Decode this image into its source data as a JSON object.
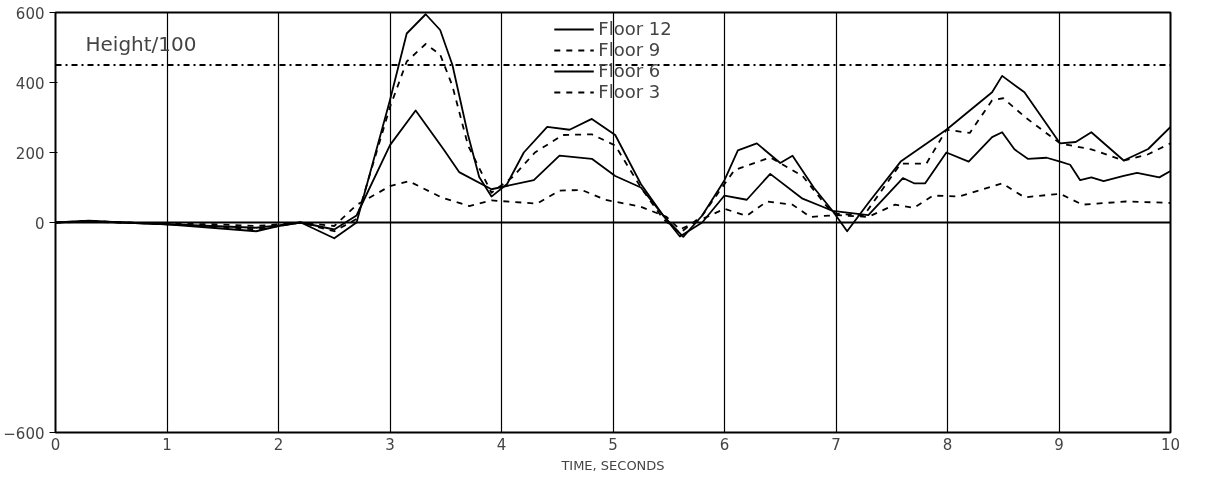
{
  "chart_data": {
    "type": "line",
    "xlabel": "TIME, SECONDS",
    "xlim": [
      0,
      10
    ],
    "xticks": [
      0,
      1,
      2,
      3,
      4,
      5,
      6,
      7,
      8,
      9,
      10
    ],
    "ylim": [
      -600,
      600
    ],
    "yticks": [
      -600,
      0,
      200,
      400,
      600
    ],
    "grid": "x",
    "marker": "none",
    "legend": "top",
    "ref_lines": [
      {
        "axis": "y",
        "value": 450,
        "label": "Height/100",
        "color": "#000000",
        "line_style": "dashdot"
      },
      {
        "axis": "y",
        "value": 0,
        "color": "#000000",
        "line_style": "solid"
      }
    ],
    "series": [
      {
        "name": "Floor 12",
        "color": "#000000",
        "line_style": "solid",
        "x": [
          0,
          0.3,
          0.6,
          1.0,
          1.4,
          1.8,
          2.0,
          2.2,
          2.5,
          2.7,
          3.0,
          3.15,
          3.32,
          3.45,
          3.56,
          3.7,
          3.8,
          3.91,
          4.05,
          4.2,
          4.41,
          4.61,
          4.81,
          5.02,
          5.25,
          5.45,
          5.63,
          5.8,
          6.0,
          6.12,
          6.29,
          6.5,
          6.61,
          6.8,
          6.97,
          7.1,
          7.3,
          7.58,
          7.99,
          8.2,
          8.4,
          8.49,
          8.69,
          9.01,
          9.15,
          9.29,
          9.58,
          9.8,
          10.0
        ],
        "values": [
          0,
          5,
          0,
          -5,
          -15,
          -25,
          -10,
          0,
          -45,
          0,
          350,
          540,
          595,
          550,
          450,
          250,
          130,
          74,
          110,
          200,
          273,
          265,
          296,
          250,
          110,
          20,
          -41,
          20,
          121,
          206,
          226,
          170,
          191,
          100,
          33,
          -25,
          60,
          174,
          265,
          320,
          372,
          419,
          372,
          226,
          230,
          258,
          177,
          210,
          273
        ]
      },
      {
        "name": "Floor 9",
        "color": "#000000",
        "line_style": "dashed",
        "x": [
          0,
          0.3,
          0.6,
          1.0,
          1.4,
          1.8,
          2.0,
          2.2,
          2.5,
          2.7,
          3.0,
          3.15,
          3.32,
          3.45,
          3.56,
          3.7,
          3.91,
          4.1,
          4.3,
          4.55,
          4.81,
          5.02,
          5.25,
          5.45,
          5.6,
          5.8,
          6.0,
          6.09,
          6.41,
          6.7,
          6.92,
          7.0,
          7.25,
          7.58,
          7.81,
          7.99,
          8.2,
          8.4,
          8.5,
          8.7,
          9.01,
          9.29,
          9.58,
          9.8,
          10.0
        ],
        "values": [
          0,
          5,
          0,
          -5,
          -10,
          -20,
          -10,
          0,
          -25,
          10,
          330,
          460,
          510,
          480,
          390,
          220,
          85,
          130,
          200,
          250,
          252,
          220,
          100,
          10,
          -30,
          20,
          110,
          150,
          186,
          133,
          45,
          25,
          20,
          168,
          168,
          265,
          256,
          349,
          355,
          300,
          226,
          209,
          177,
          195,
          226
        ]
      },
      {
        "name": "Floor 6",
        "color": "#000000",
        "line_style": "solid",
        "x": [
          0,
          0.3,
          0.6,
          1.0,
          1.4,
          1.8,
          2.0,
          2.2,
          2.5,
          2.7,
          3.0,
          3.23,
          3.48,
          3.62,
          3.91,
          4.29,
          4.52,
          4.81,
          5.02,
          5.25,
          5.45,
          5.6,
          5.8,
          6.0,
          6.2,
          6.41,
          6.7,
          6.88,
          6.97,
          7.29,
          7.6,
          7.7,
          7.8,
          7.99,
          8.19,
          8.4,
          8.49,
          8.6,
          8.72,
          8.89,
          9.01,
          9.1,
          9.19,
          9.29,
          9.4,
          9.58,
          9.7,
          9.9,
          10.0
        ],
        "values": [
          0,
          3,
          0,
          -5,
          -10,
          -15,
          -8,
          0,
          -20,
          20,
          221,
          320,
          209,
          144,
          95,
          121,
          191,
          182,
          133,
          100,
          20,
          -40,
          0,
          77,
          65,
          139,
          68,
          45,
          33,
          21,
          127,
          112,
          112,
          200,
          174,
          244,
          258,
          209,
          182,
          185,
          174,
          165,
          121,
          129,
          118,
          133,
          142,
          129,
          147
        ]
      },
      {
        "name": "Floor 3",
        "color": "#000000",
        "line_style": "dashed",
        "x": [
          0,
          0.3,
          0.6,
          1.0,
          1.4,
          1.8,
          2.0,
          2.2,
          2.5,
          2.7,
          3.0,
          3.17,
          3.46,
          3.71,
          3.91,
          4.32,
          4.52,
          4.72,
          4.93,
          5.25,
          5.48,
          5.6,
          5.8,
          6.0,
          6.2,
          6.38,
          6.61,
          6.77,
          7.0,
          7.29,
          7.53,
          7.7,
          7.87,
          8.1,
          8.49,
          8.69,
          9.01,
          9.21,
          9.6,
          10.0
        ],
        "values": [
          0,
          2,
          0,
          -3,
          -5,
          -10,
          -5,
          0,
          -10,
          50,
          104,
          118,
          72,
          47,
          63,
          54,
          91,
          93,
          65,
          45,
          16,
          -20,
          10,
          39,
          19,
          60,
          51,
          16,
          21,
          16,
          51,
          42,
          77,
          74,
          112,
          72,
          82,
          51,
          60,
          56
        ]
      }
    ]
  }
}
